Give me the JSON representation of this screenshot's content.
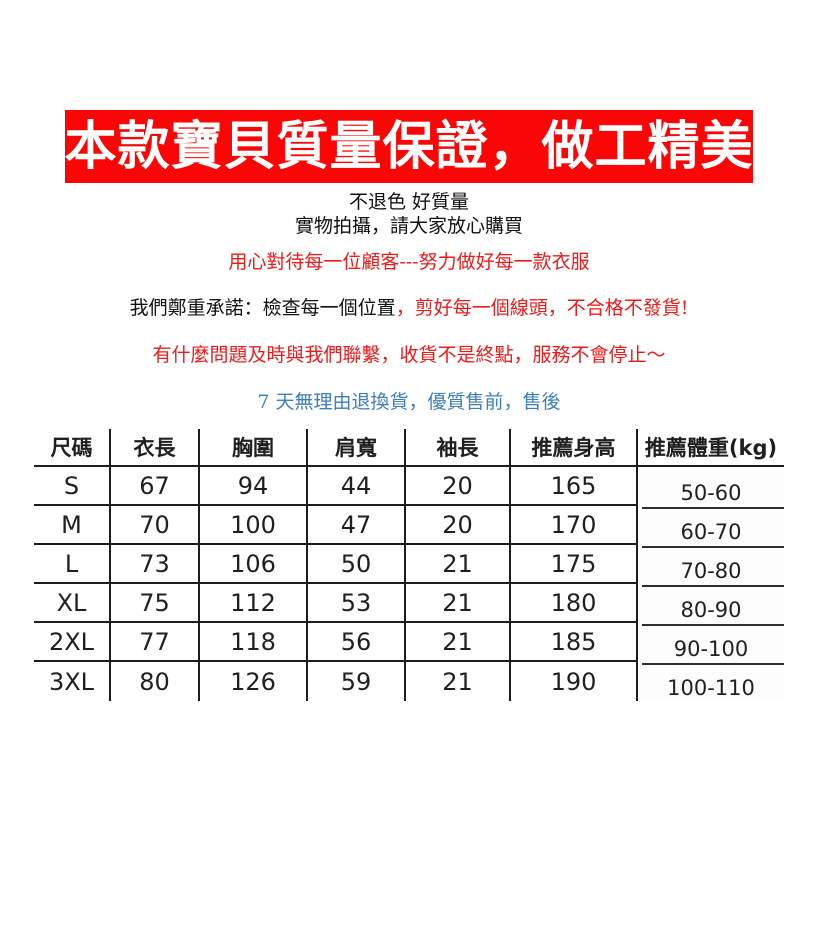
{
  "banner": {
    "text": "本款寶貝質量保證，做工精美",
    "background_color": "#fa0606",
    "text_color": "#ffffff"
  },
  "notes": [
    {
      "text": "不退色 好質量"
    },
    {
      "text": "實物拍攝，請大家放心購買"
    }
  ],
  "slogans": [
    {
      "text": "用心對待每一位顧客---努力做好每一款衣服",
      "color": "#ee1a1a"
    },
    {
      "parts": [
        {
          "text": "我們鄭重承諾：檢查每一個位置",
          "color": "#111111"
        },
        {
          "text": "，剪好每一個線頭，不合格不發貨!",
          "color": "#ee1a1a"
        }
      ]
    },
    {
      "text": "有什麼問題及時與我們聯繫，收貨不是終點，服務不會停止～",
      "color": "#ee1a1a"
    },
    {
      "text": "7 天無理由退換貨，優質售前，售後",
      "color": "#3d7ebf"
    }
  ],
  "size_table": {
    "headers": [
      "尺碼",
      "衣長",
      "胸圍",
      "肩寬",
      "袖長",
      "推薦身高",
      "推薦體重(kg)"
    ],
    "rows": [
      [
        "S",
        "67",
        "94",
        "44",
        "20",
        "165",
        "50-60"
      ],
      [
        "M",
        "70",
        "100",
        "47",
        "20",
        "170",
        "60-70"
      ],
      [
        "L",
        "73",
        "106",
        "50",
        "21",
        "175",
        "70-80"
      ],
      [
        "XL",
        "75",
        "112",
        "53",
        "21",
        "180",
        "80-90"
      ],
      [
        "2XL",
        "77",
        "118",
        "56",
        "21",
        "185",
        "90-100"
      ],
      [
        "3XL",
        "80",
        "126",
        "59",
        "21",
        "190",
        "100-110"
      ]
    ]
  },
  "colors": {
    "banner_red": "#fa0606",
    "slogan_red": "#ee1a1a",
    "slogan_blue": "#3d7ebf",
    "table_line": "#1c1c1c"
  }
}
